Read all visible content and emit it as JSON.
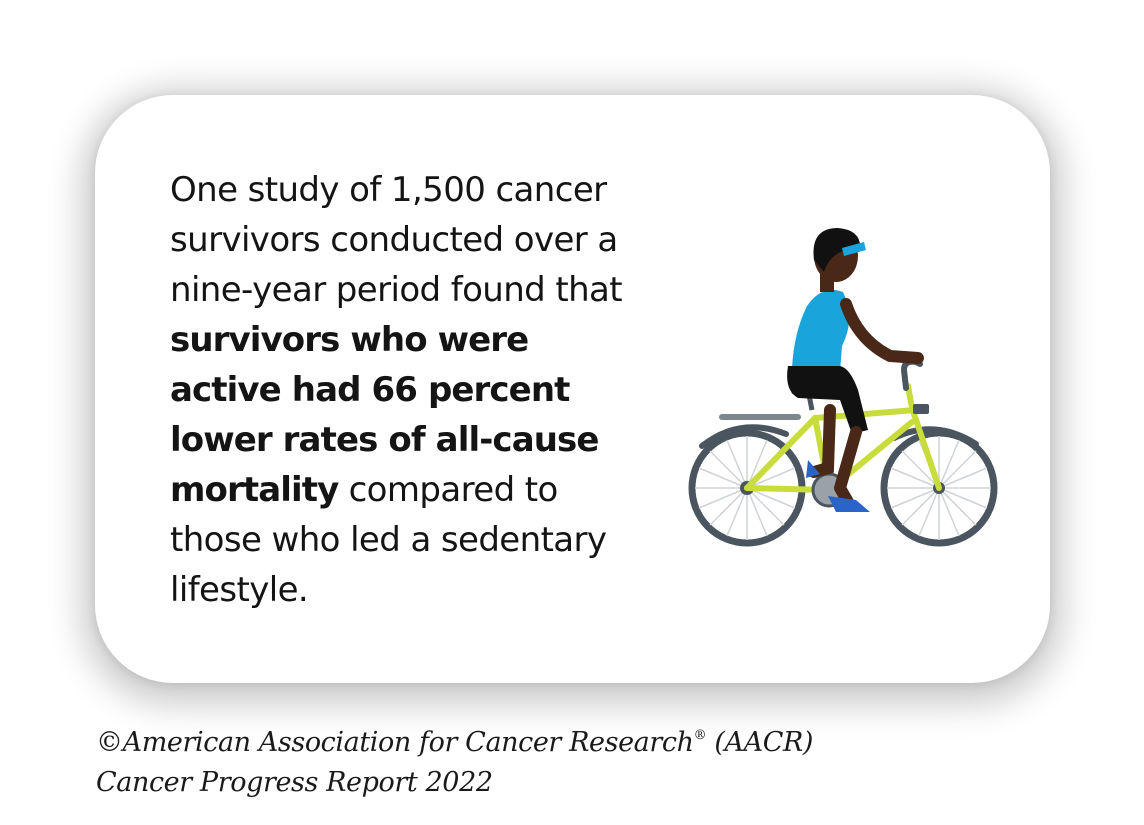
{
  "statement": {
    "part1": "One study of 1,500 cancer survivors conducted over a nine-year period found that ",
    "bold": "survivors who were active had 66 percent lower rates of all-cause mortality",
    "part2": " compared to those who led a sedentary lifestyle."
  },
  "illustration": {
    "subject": "cyclist-on-bicycle",
    "colors": {
      "frame": "#c8dc3c",
      "tire": "#4a5560",
      "shirt": "#1aa4dc",
      "skin": "#4a2818",
      "shorts": "#111111",
      "shoes": "#2a64c8",
      "headband": "#1aa4dc"
    }
  },
  "credit": {
    "line1_main": "©American Association for Cancer Research",
    "line1_reg": "®",
    "line1_end": " (AACR)",
    "line2": "Cancer Progress Report 2022"
  }
}
